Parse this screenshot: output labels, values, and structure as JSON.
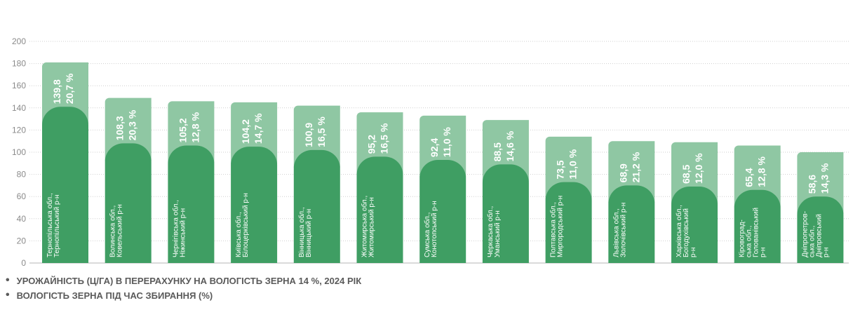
{
  "colors": {
    "yield": "#3f9e63",
    "moisture": "#8fc7a3",
    "grid": "#cfcfcf",
    "axis_text": "#8a8a8a",
    "legend_text": "#5a5a5a"
  },
  "legend": {
    "yield": "УРОЖАЙНІСТЬ (Ц/ГА) В ПЕРЕРАХУНКУ НА ВОЛОГІСТЬ ЗЕРНА 14 %, 2024 РІК",
    "moisture": "ВОЛОГІСТЬ ЗЕРНА ПІД ЧАС ЗБИРАННЯ (%)"
  },
  "chart_data": {
    "type": "bar",
    "ylim": [
      0,
      200
    ],
    "yticks": [
      "0",
      "20",
      "40",
      "60",
      "80",
      "100",
      "120",
      "140",
      "160",
      "180",
      "200"
    ],
    "grid": true,
    "legend_position": "bottom-left",
    "categories": [
      [
        "Тернопільська обл.,",
        "Тернопільський р-н"
      ],
      [
        "Волинська обл.,",
        "Ковельський р-н"
      ],
      [
        "Чернігівська обл.,",
        "Ніжинський р-н"
      ],
      [
        "Київська обл.,",
        "Білоцерківський р-н"
      ],
      [
        "Вінницька обл.,",
        "Вінницький р-н"
      ],
      [
        "Житомирська обл.,",
        "Житомирський р-н"
      ],
      [
        "Сумська обл.,",
        "Конотопський р-н"
      ],
      [
        "Черкаська обл.,",
        "Уманський р-н"
      ],
      [
        "Полтавська обл.,",
        "Миргородський р-н"
      ],
      [
        "Львівська обл.,",
        "Золочівський р-н"
      ],
      [
        "Харківська обл.,",
        "Богодухівський",
        "р-н"
      ],
      [
        "Кіровоград-",
        "ська обл.,",
        "Голованівський",
        "р-н"
      ],
      [
        "Дніпропетров-",
        "ська обл.,",
        "Дніпровський",
        "р-н"
      ]
    ],
    "series": [
      {
        "name": "yield",
        "values": [
          139.8,
          108.3,
          105.2,
          104.2,
          100.9,
          95.2,
          92.4,
          88.5,
          73.5,
          68.9,
          68.5,
          65.4,
          58.6
        ],
        "labels": [
          "139,8",
          "108,3",
          "105,2",
          "104,2",
          "100,9",
          "95,2",
          "92,4",
          "88,5",
          "73,5",
          "68,9",
          "68,5",
          "65,4",
          "58,6"
        ],
        "bar_heights": [
          141,
          108,
          106,
          105,
          102,
          96,
          93,
          89,
          73,
          70,
          69,
          66,
          60
        ]
      },
      {
        "name": "moisture",
        "values": [
          20.7,
          20.3,
          12.8,
          14.7,
          16.5,
          16.5,
          11.0,
          14.6,
          11.0,
          21.2,
          12.0,
          12.8,
          14.3
        ],
        "labels": [
          "20,7 %",
          "20,3 %",
          "12,8 %",
          "14,7 %",
          "16,5 %",
          "16,5 %",
          "11,0 %",
          "14,6 %",
          "11,0 %",
          "21,2 %",
          "12,0 %",
          "12,8 %",
          "14,3 %"
        ],
        "bar_tops": [
          181,
          149,
          146,
          145,
          142,
          136,
          133,
          129,
          114,
          110,
          109,
          106,
          100
        ]
      }
    ]
  }
}
